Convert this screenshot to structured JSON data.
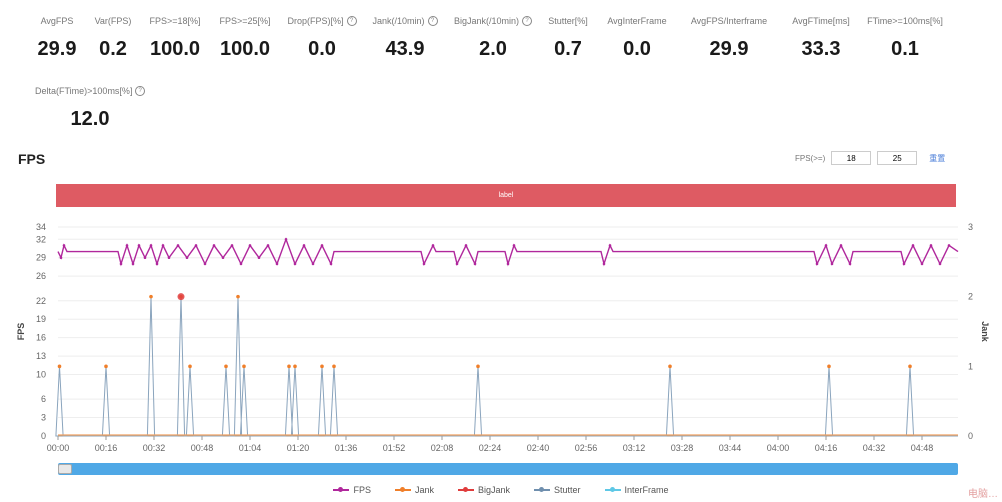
{
  "metrics": [
    {
      "label": "AvgFPS",
      "value": "29.9"
    },
    {
      "label": "Var(FPS)",
      "value": "0.2"
    },
    {
      "label": "FPS>=18[%]",
      "value": "100.0"
    },
    {
      "label": "FPS>=25[%]",
      "value": "100.0"
    },
    {
      "label": "Drop(FPS)[%]",
      "value": "0.0",
      "help": true
    },
    {
      "label": "Jank(/10min)",
      "value": "43.9",
      "help": true
    },
    {
      "label": "BigJank(/10min)",
      "value": "2.0",
      "help": true
    },
    {
      "label": "Stutter[%]",
      "value": "0.7"
    },
    {
      "label": "AvgInterFrame",
      "value": "0.0"
    },
    {
      "label": "AvgFPS/Interframe",
      "value": "29.9"
    },
    {
      "label": "AvgFTime[ms]",
      "value": "33.3"
    },
    {
      "label": "FTime>=100ms[%]",
      "value": "0.1"
    },
    {
      "label": "Delta(FTime)>100ms[%]",
      "value": "12.0",
      "help": true
    }
  ],
  "section_title": "FPS",
  "fps_control": {
    "label": "FPS(>=)",
    "value_1": "18",
    "value_2": "25",
    "reset": "重置"
  },
  "banner_text": "label",
  "legend": [
    {
      "name": "FPS",
      "color": "#b0279c"
    },
    {
      "name": "Jank",
      "color": "#f07f2a"
    },
    {
      "name": "BigJank",
      "color": "#e03c3c"
    },
    {
      "name": "Stutter",
      "color": "#6f8fae"
    },
    {
      "name": "InterFrame",
      "color": "#5ec8e6"
    }
  ],
  "watermark": "电脑…",
  "chart_data": {
    "type": "line",
    "ylabel": "FPS",
    "y2label": "Jank",
    "ylim": [
      0,
      34
    ],
    "y_ticks": [
      0,
      3,
      6,
      10,
      13,
      16,
      19,
      22,
      26,
      29,
      32,
      34
    ],
    "y2lim": [
      0,
      3
    ],
    "y2_ticks": [
      0,
      1,
      2,
      3
    ],
    "x_range_seconds": [
      0,
      300
    ],
    "x_tick_labels": [
      "00:00",
      "00:16",
      "00:32",
      "00:48",
      "01:04",
      "01:20",
      "01:36",
      "01:52",
      "02:08",
      "02:24",
      "02:40",
      "02:56",
      "03:12",
      "03:28",
      "03:44",
      "04:00",
      "04:16",
      "04:32",
      "04:48"
    ],
    "fps_base": 30,
    "fps_dips": [
      {
        "t": 1,
        "fps": 29
      },
      {
        "t": 2,
        "fps": 31
      },
      {
        "t": 21,
        "fps": 28
      },
      {
        "t": 23,
        "fps": 31
      },
      {
        "t": 25,
        "fps": 28
      },
      {
        "t": 27,
        "fps": 31
      },
      {
        "t": 29,
        "fps": 29
      },
      {
        "t": 31,
        "fps": 31
      },
      {
        "t": 33,
        "fps": 28
      },
      {
        "t": 35,
        "fps": 31
      },
      {
        "t": 37,
        "fps": 29
      },
      {
        "t": 40,
        "fps": 31
      },
      {
        "t": 43,
        "fps": 29
      },
      {
        "t": 46,
        "fps": 31
      },
      {
        "t": 49,
        "fps": 28
      },
      {
        "t": 52,
        "fps": 31
      },
      {
        "t": 55,
        "fps": 29
      },
      {
        "t": 58,
        "fps": 31
      },
      {
        "t": 61,
        "fps": 28
      },
      {
        "t": 64,
        "fps": 31
      },
      {
        "t": 67,
        "fps": 29
      },
      {
        "t": 70,
        "fps": 31
      },
      {
        "t": 73,
        "fps": 28
      },
      {
        "t": 76,
        "fps": 32
      },
      {
        "t": 79,
        "fps": 28
      },
      {
        "t": 82,
        "fps": 31
      },
      {
        "t": 85,
        "fps": 28
      },
      {
        "t": 88,
        "fps": 31
      },
      {
        "t": 91,
        "fps": 28
      },
      {
        "t": 122,
        "fps": 28
      },
      {
        "t": 125,
        "fps": 31
      },
      {
        "t": 133,
        "fps": 28
      },
      {
        "t": 136,
        "fps": 31
      },
      {
        "t": 139,
        "fps": 28
      },
      {
        "t": 150,
        "fps": 28
      },
      {
        "t": 152,
        "fps": 31
      },
      {
        "t": 182,
        "fps": 28
      },
      {
        "t": 184,
        "fps": 31
      },
      {
        "t": 253,
        "fps": 28
      },
      {
        "t": 256,
        "fps": 31
      },
      {
        "t": 258,
        "fps": 28
      },
      {
        "t": 261,
        "fps": 31
      },
      {
        "t": 264,
        "fps": 28
      },
      {
        "t": 282,
        "fps": 28
      },
      {
        "t": 285,
        "fps": 31
      },
      {
        "t": 288,
        "fps": 28
      },
      {
        "t": 291,
        "fps": 31
      },
      {
        "t": 294,
        "fps": 28
      },
      {
        "t": 297,
        "fps": 31
      }
    ],
    "spikes": [
      {
        "t": 0.5,
        "jank": 1
      },
      {
        "t": 16,
        "jank": 1
      },
      {
        "t": 31,
        "jank": 2
      },
      {
        "t": 41,
        "jank": 2,
        "big": true
      },
      {
        "t": 44,
        "jank": 1
      },
      {
        "t": 56,
        "jank": 1
      },
      {
        "t": 60,
        "jank": 2
      },
      {
        "t": 62,
        "jank": 1
      },
      {
        "t": 77,
        "jank": 1
      },
      {
        "t": 79,
        "jank": 1
      },
      {
        "t": 88,
        "jank": 1
      },
      {
        "t": 92,
        "jank": 1
      },
      {
        "t": 140,
        "jank": 1
      },
      {
        "t": 204,
        "jank": 1
      },
      {
        "t": 257,
        "jank": 1
      },
      {
        "t": 284,
        "jank": 1
      }
    ]
  }
}
